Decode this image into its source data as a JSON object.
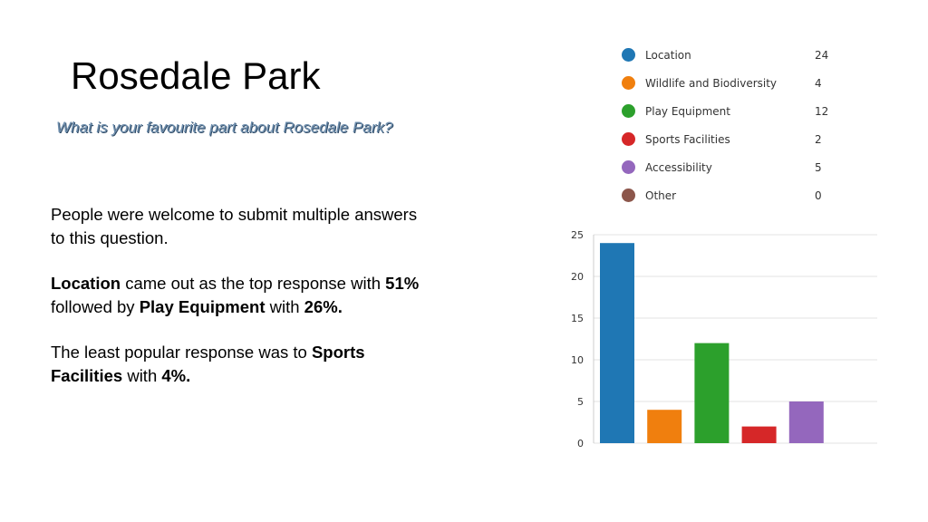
{
  "slide": {
    "title": "Rosedale Park",
    "subtitle": "What is your favourite part about Rosedale Park?",
    "para1": "People were welcome to submit multiple answers to this question.",
    "para2": {
      "t1": "Location",
      "t2": " came out as the top response with ",
      "t3": "51%",
      "t4": " followed by ",
      "t5": "Play Equipment",
      "t6": " with ",
      "t7": "26%."
    },
    "para3": {
      "t1": "The least popular response was to ",
      "t2": "Sports Facilities",
      "t3": " with ",
      "t4": "4%."
    }
  },
  "legend": [
    {
      "label": "Location",
      "count": "24",
      "color": "#1f77b4"
    },
    {
      "label": "Wildlife and Biodiversity",
      "count": "4",
      "color": "#f07f0e"
    },
    {
      "label": "Play Equipment",
      "count": "12",
      "color": "#2ca02c"
    },
    {
      "label": "Sports Facilities",
      "count": "2",
      "color": "#d62728"
    },
    {
      "label": "Accessibility",
      "count": "5",
      "color": "#9467bd"
    },
    {
      "label": "Other",
      "count": "0",
      "color": "#8c564b"
    }
  ],
  "chart_data": {
    "type": "bar",
    "categories": [
      "Location",
      "Wildlife and Biodiversity",
      "Play Equipment",
      "Sports Facilities",
      "Accessibility",
      "Other"
    ],
    "values": [
      24,
      4,
      12,
      2,
      5,
      0
    ],
    "colors": [
      "#1f77b4",
      "#f07f0e",
      "#2ca02c",
      "#d62728",
      "#9467bd",
      "#8c564b"
    ],
    "ylim": [
      0,
      25
    ],
    "yticks": [
      0,
      5,
      10,
      15,
      20,
      25
    ],
    "grid": true,
    "legend_position": "top",
    "title": "",
    "xlabel": "",
    "ylabel": ""
  }
}
